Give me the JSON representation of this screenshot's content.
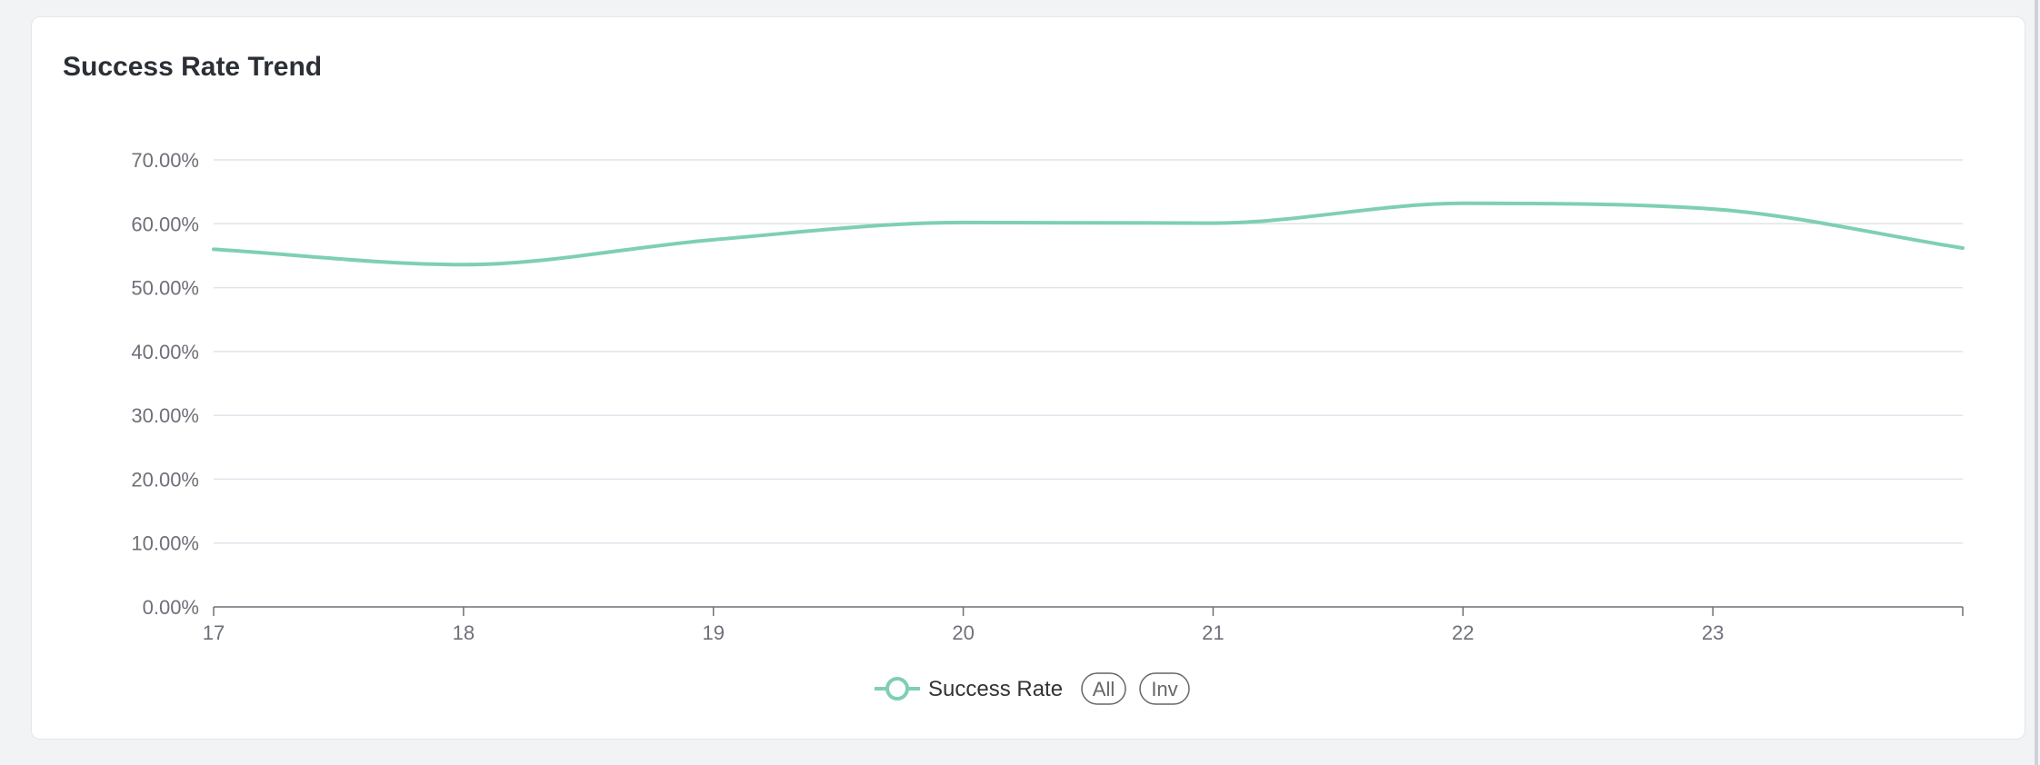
{
  "card": {
    "title": "Success Rate Trend"
  },
  "colors": {
    "series": "#7ecfb3",
    "grid": "#e0e3ec",
    "axis": "#6e7079"
  },
  "legend": {
    "series_label": "Success Rate",
    "all_label": "All",
    "inv_label": "Inv",
    "placement": "bottom-center"
  },
  "chart_data": {
    "type": "line",
    "title": "Success Rate Trend",
    "x": [
      17,
      18,
      19,
      20,
      21,
      22,
      23,
      24
    ],
    "x_tick_labels": [
      "17",
      "18",
      "19",
      "20",
      "21",
      "22",
      "23"
    ],
    "xlim": [
      17,
      24
    ],
    "ylim": [
      0,
      70
    ],
    "y_ticks": [
      0,
      10,
      20,
      30,
      40,
      50,
      60,
      70
    ],
    "y_tick_labels": [
      "0.00%",
      "10.00%",
      "20.00%",
      "30.00%",
      "40.00%",
      "50.00%",
      "60.00%",
      "70.00%"
    ],
    "grid": true,
    "smooth": true,
    "series": [
      {
        "name": "Success Rate",
        "values": [
          56.0,
          53.6,
          57.5,
          60.2,
          60.1,
          63.2,
          62.3,
          56.2
        ]
      }
    ]
  }
}
